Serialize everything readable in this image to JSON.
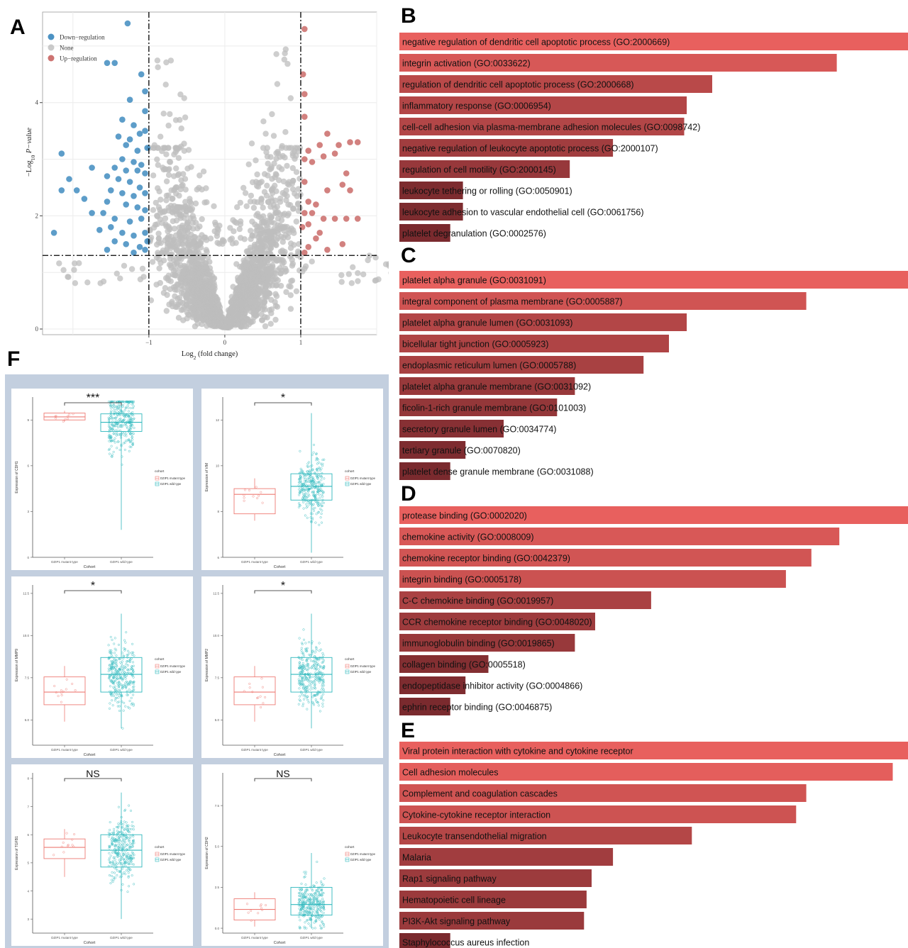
{
  "panel_labels": {
    "a": "A",
    "b": "B",
    "c": "C",
    "d": "D",
    "e": "E",
    "f": "F"
  },
  "colors": {
    "down": "#1f77b4",
    "none": "#bdbdbd",
    "up": "#c0504d",
    "bar_high": "#e8605e",
    "bar_low": "#7a2a2e",
    "mutant": "#ee7b74",
    "wild": "#2fb8bd",
    "grid_bg": "#c3cfdf"
  },
  "chart_data": [
    {
      "id": "A",
      "type": "scatter",
      "xlabel_main": "Log",
      "xlabel_sub": "2",
      "xlabel_tail": " (fold change)",
      "ylabel_main": "−Log",
      "ylabel_sub": "10",
      "ylabel_tail": " P−value",
      "xlim": [
        -2.4,
        2.0
      ],
      "ylim": [
        -0.1,
        5.6
      ],
      "xticks": [
        -1,
        0,
        1
      ],
      "yticks": [
        0,
        2,
        4
      ],
      "thresholds": {
        "x": [
          -1,
          1
        ],
        "y": 1.3
      },
      "legend": [
        "Down−regulation",
        "None",
        "Up−regulation"
      ],
      "series": [
        {
          "name": "Down−regulation",
          "points": [
            [
              -1.28,
              5.4
            ],
            [
              -1.55,
              4.7
            ],
            [
              -1.45,
              4.7
            ],
            [
              -1.1,
              4.5
            ],
            [
              -1.05,
              4.2
            ],
            [
              -1.25,
              4.05
            ],
            [
              -1.05,
              3.85
            ],
            [
              -1.35,
              3.7
            ],
            [
              -1.2,
              3.6
            ],
            [
              -1.12,
              3.45
            ],
            [
              -1.4,
              3.4
            ],
            [
              -1.25,
              3.35
            ],
            [
              -1.05,
              3.5
            ],
            [
              -1.3,
              3.25
            ],
            [
              -1.15,
              3.15
            ],
            [
              -1.02,
              3.2
            ],
            [
              -1.35,
              3.0
            ],
            [
              -1.2,
              2.95
            ],
            [
              -1.1,
              2.9
            ],
            [
              -2.15,
              3.1
            ],
            [
              -1.75,
              2.85
            ],
            [
              -1.45,
              2.85
            ],
            [
              -1.3,
              2.8
            ],
            [
              -1.05,
              2.75
            ],
            [
              -1.55,
              2.7
            ],
            [
              -1.4,
              2.65
            ],
            [
              -1.25,
              2.6
            ],
            [
              -1.12,
              2.5
            ],
            [
              -2.05,
              2.65
            ],
            [
              -1.95,
              2.45
            ],
            [
              -1.5,
              2.45
            ],
            [
              -1.35,
              2.4
            ],
            [
              -1.2,
              2.35
            ],
            [
              -1.05,
              2.4
            ],
            [
              -2.15,
              2.45
            ],
            [
              -1.85,
              2.3
            ],
            [
              -1.55,
              2.25
            ],
            [
              -1.3,
              2.2
            ],
            [
              -1.15,
              2.15
            ],
            [
              -1.05,
              2.1
            ],
            [
              -1.6,
              2.05
            ],
            [
              -1.45,
              1.95
            ],
            [
              -1.25,
              1.9
            ],
            [
              -1.1,
              1.95
            ],
            [
              -1.5,
              1.8
            ],
            [
              -1.35,
              1.7
            ],
            [
              -1.2,
              1.65
            ],
            [
              -1.05,
              1.7
            ],
            [
              -1.45,
              1.55
            ],
            [
              -1.3,
              1.5
            ],
            [
              -1.12,
              1.45
            ],
            [
              -1.55,
              1.4
            ],
            [
              -1.2,
              1.35
            ],
            [
              -1.05,
              1.4
            ],
            [
              -2.25,
              1.7
            ],
            [
              -1.65,
              1.75
            ],
            [
              -1.02,
              1.55
            ],
            [
              -1.75,
              2.05
            ],
            [
              -1.15,
              2.8
            ]
          ]
        },
        {
          "name": "Up−regulation",
          "points": [
            [
              1.05,
              5.3
            ],
            [
              1.03,
              4.5
            ],
            [
              1.05,
              4.15
            ],
            [
              1.05,
              3.75
            ],
            [
              1.35,
              3.45
            ],
            [
              1.65,
              3.3
            ],
            [
              1.5,
              3.25
            ],
            [
              1.25,
              3.25
            ],
            [
              1.1,
              3.15
            ],
            [
              1.45,
              3.1
            ],
            [
              1.3,
              3.05
            ],
            [
              1.05,
              3.0
            ],
            [
              1.75,
              3.3
            ],
            [
              1.15,
              2.95
            ],
            [
              1.6,
              2.75
            ],
            [
              1.55,
              2.55
            ],
            [
              1.05,
              2.6
            ],
            [
              1.35,
              2.45
            ],
            [
              1.65,
              2.45
            ],
            [
              1.1,
              2.25
            ],
            [
              1.2,
              2.2
            ],
            [
              1.15,
              2.05
            ],
            [
              1.3,
              1.95
            ],
            [
              1.05,
              2.05
            ],
            [
              1.45,
              1.95
            ],
            [
              1.6,
              1.95
            ],
            [
              1.75,
              1.95
            ],
            [
              1.1,
              1.85
            ],
            [
              1.02,
              1.8
            ],
            [
              1.25,
              1.7
            ],
            [
              1.55,
              1.5
            ],
            [
              1.35,
              1.4
            ],
            [
              1.1,
              1.45
            ],
            [
              1.05,
              1.35
            ],
            [
              1.2,
              1.6
            ]
          ]
        }
      ]
    },
    {
      "id": "B",
      "type": "bar",
      "categories": [
        "negative regulation of dendritic cell apoptotic process (GO:2000669)",
        "integrin activation (GO:0033622)",
        "regulation of dendritic cell apoptotic process (GO:2000668)",
        "inflammatory response (GO:0006954)",
        "cell-cell adhesion via plasma-membrane adhesion molecules (GO:0098742)",
        "negative regulation of leukocyte apoptotic process (GO:2000107)",
        "regulation of cell motility (GO:2000145)",
        "leukocyte tethering or rolling (GO:0050901)",
        "leukocyte adhesion to vascular endothelial cell (GO:0061756)",
        "platelet degranulation (GO:0002576)"
      ],
      "values": [
        1.0,
        0.86,
        0.615,
        0.565,
        0.56,
        0.42,
        0.335,
        0.125,
        0.125,
        0.1
      ]
    },
    {
      "id": "C",
      "type": "bar",
      "categories": [
        "platelet alpha granule (GO:0031091)",
        "integral component of plasma membrane (GO:0005887)",
        "platelet alpha granule lumen (GO:0031093)",
        "bicellular tight junction (GO:0005923)",
        "endoplasmic reticulum lumen (GO:0005788)",
        "platelet alpha granule membrane (GO:0031092)",
        "ficolin-1-rich granule membrane (GO:0101003)",
        "secretory granule lumen (GO:0034774)",
        "tertiary granule (GO:0070820)",
        "platelet dense granule membrane (GO:0031088)"
      ],
      "values": [
        1.0,
        0.8,
        0.565,
        0.53,
        0.48,
        0.345,
        0.31,
        0.205,
        0.13,
        0.1
      ]
    },
    {
      "id": "D",
      "type": "bar",
      "categories": [
        "protease binding (GO:0002020)",
        "chemokine activity (GO:0008009)",
        "chemokine receptor binding (GO:0042379)",
        "integrin binding (GO:0005178)",
        "C-C chemokine binding (GO:0019957)",
        "CCR chemokine receptor binding (GO:0048020)",
        "immunoglobulin binding (GO:0019865)",
        "collagen binding (GO:0005518)",
        "endopeptidase inhibitor activity (GO:0004866)",
        "ephrin receptor binding (GO:0046875)"
      ],
      "values": [
        1.0,
        0.865,
        0.81,
        0.76,
        0.495,
        0.385,
        0.345,
        0.175,
        0.13,
        0.1
      ]
    },
    {
      "id": "E",
      "type": "bar",
      "categories": [
        "Viral protein interaction with cytokine and cytokine receptor",
        "Cell adhesion molecules",
        "Complement and coagulation cascades",
        "Cytokine-cytokine receptor interaction",
        "Leukocyte transendothelial migration",
        "Malaria",
        "Rap1 signaling pathway",
        "Hematopoietic cell lineage",
        "PI3K-Akt signaling pathway",
        "Staphylococcus aureus infection"
      ],
      "values": [
        1.0,
        0.97,
        0.8,
        0.78,
        0.575,
        0.42,
        0.378,
        0.368,
        0.363,
        0.1
      ]
    },
    {
      "id": "F1",
      "type": "box",
      "significance": "***",
      "ylabel": "Expression of CDH1",
      "xlabel": "Cohort",
      "categories": [
        "DZIP1 mutant type",
        "DZIP1 wild type"
      ],
      "legend_title": "cohort",
      "ylim": [
        0,
        10.5
      ],
      "yticks": [
        0,
        3,
        6,
        9
      ],
      "boxes": [
        {
          "q1": 9.0,
          "median": 9.2,
          "q3": 9.45,
          "lo": 8.9,
          "hi": 9.6,
          "n": 9,
          "spread": 0.35
        },
        {
          "q1": 8.25,
          "median": 8.85,
          "q3": 9.4,
          "lo": 1.8,
          "hi": 10.2,
          "n": 300,
          "spread": 1.6
        }
      ]
    },
    {
      "id": "F2",
      "type": "box",
      "significance": "*",
      "ylabel": "Expression of VIM",
      "xlabel": "Cohort",
      "categories": [
        "DZIP1 mutant type",
        "DZIP1 wild type"
      ],
      "legend_title": "cohort",
      "ylim": [
        6,
        13
      ],
      "yticks": [
        6,
        8,
        10,
        12
      ],
      "boxes": [
        {
          "q1": 7.9,
          "median": 8.75,
          "q3": 9.0,
          "lo": 7.6,
          "hi": 9.45,
          "n": 11,
          "spread": 0.5
        },
        {
          "q1": 8.5,
          "median": 9.1,
          "q3": 9.65,
          "lo": 6.2,
          "hi": 12.3,
          "n": 300,
          "spread": 1.0
        }
      ]
    },
    {
      "id": "F3",
      "type": "box",
      "significance": "*",
      "ylabel": "Expression of MMP9",
      "xlabel": "Cohort",
      "categories": [
        "DZIP1 mutant type",
        "DZIP1 wild type"
      ],
      "legend_title": "cohort",
      "ylim": [
        3.5,
        13
      ],
      "yticks": [
        5.0,
        7.5,
        10.0,
        12.5
      ],
      "boxes": [
        {
          "q1": 5.9,
          "median": 6.65,
          "q3": 7.55,
          "lo": 4.9,
          "hi": 8.2,
          "n": 12,
          "spread": 0.8
        },
        {
          "q1": 6.65,
          "median": 7.7,
          "q3": 8.7,
          "lo": 4.5,
          "hi": 11.3,
          "n": 300,
          "spread": 1.5
        }
      ]
    },
    {
      "id": "F4",
      "type": "box",
      "significance": "*",
      "ylabel": "Expression of MMP2",
      "xlabel": "Cohort",
      "categories": [
        "DZIP1 mutant type",
        "DZIP1 wild type"
      ],
      "legend_title": "cohort",
      "ylim": [
        3.5,
        13
      ],
      "yticks": [
        5.0,
        7.5,
        10.0,
        12.5
      ],
      "boxes": [
        {
          "q1": 5.9,
          "median": 6.65,
          "q3": 7.55,
          "lo": 4.9,
          "hi": 8.2,
          "n": 12,
          "spread": 0.8
        },
        {
          "q1": 6.65,
          "median": 7.7,
          "q3": 8.7,
          "lo": 4.5,
          "hi": 11.3,
          "n": 300,
          "spread": 1.5
        }
      ]
    },
    {
      "id": "F5",
      "type": "box",
      "significance": "NS",
      "ylabel": "Expression of TGFB1",
      "xlabel": "Cohort",
      "categories": [
        "DZIP1 mutant type",
        "DZIP1 wild type"
      ],
      "legend_title": "cohort",
      "ylim": [
        2.5,
        8.2
      ],
      "yticks": [
        3,
        4,
        5,
        6,
        7,
        8
      ],
      "boxes": [
        {
          "q1": 5.15,
          "median": 5.55,
          "q3": 5.85,
          "lo": 4.5,
          "hi": 6.2,
          "n": 11,
          "spread": 0.5
        },
        {
          "q1": 4.85,
          "median": 5.45,
          "q3": 6.0,
          "lo": 3.0,
          "hi": 7.5,
          "n": 300,
          "spread": 0.9
        }
      ]
    },
    {
      "id": "F6",
      "type": "box",
      "significance": "NS",
      "ylabel": "Expression of CDH2",
      "xlabel": "Cohort",
      "categories": [
        "DZIP1 mutant type",
        "DZIP1 wild type"
      ],
      "legend_title": "cohort",
      "ylim": [
        -0.3,
        9.5
      ],
      "yticks": [
        0.0,
        2.5,
        5.0,
        7.5
      ],
      "boxes": [
        {
          "q1": 0.5,
          "median": 1.15,
          "q3": 1.8,
          "lo": 0.1,
          "hi": 2.2,
          "n": 10,
          "spread": 0.8
        },
        {
          "q1": 0.8,
          "median": 1.45,
          "q3": 2.5,
          "lo": 0.0,
          "hi": 4.6,
          "n": 300,
          "spread": 1.1
        }
      ]
    }
  ]
}
